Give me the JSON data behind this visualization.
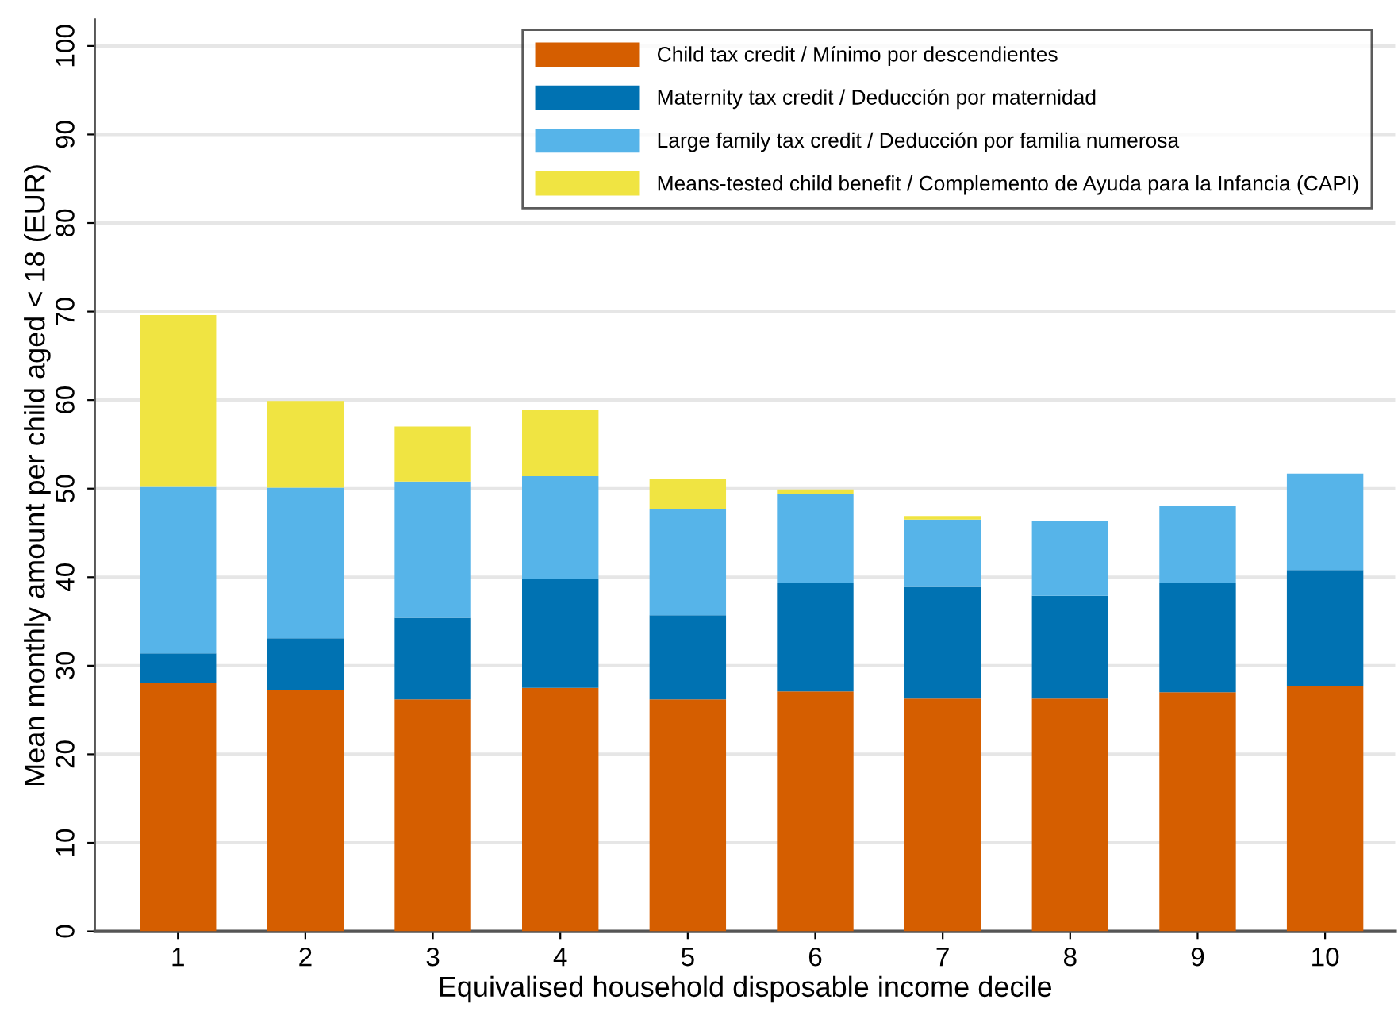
{
  "chart_data": {
    "type": "bar",
    "stacked": true,
    "xlabel": "Equivalised household disposable income decile",
    "ylabel": "Mean monthly amount per child aged < 18 (EUR)",
    "categories": [
      "1",
      "2",
      "3",
      "4",
      "5",
      "6",
      "7",
      "8",
      "9",
      "10"
    ],
    "series": [
      {
        "name": "Child tax credit / Mínimo por descendientes",
        "color": "#d55e00",
        "values": [
          28.1,
          27.2,
          26.2,
          27.5,
          26.2,
          27.1,
          26.3,
          26.3,
          27.0,
          27.7
        ]
      },
      {
        "name": "Maternity tax credit / Deducción por maternidad",
        "color": "#0072b2",
        "values": [
          3.3,
          5.9,
          9.2,
          12.3,
          9.5,
          12.2,
          12.6,
          11.6,
          12.4,
          13.1
        ]
      },
      {
        "name": "Large family tax credit / Deducción por familia numerosa",
        "color": "#56b4e9",
        "values": [
          18.8,
          17.0,
          15.4,
          11.6,
          12.0,
          10.1,
          7.6,
          8.5,
          8.6,
          10.9
        ]
      },
      {
        "name": "Means-tested child benefit / Complemento de Ayuda para la Infancia (CAPI)",
        "color": "#f0e442",
        "values": [
          19.4,
          9.8,
          6.2,
          7.5,
          3.4,
          0.5,
          0.4,
          0,
          0,
          0
        ]
      }
    ],
    "ylim": [
      0,
      103
    ],
    "yticks": [
      0,
      10,
      20,
      30,
      40,
      50,
      60,
      70,
      80,
      90,
      100
    ],
    "grid": "y",
    "legend": "top right"
  }
}
